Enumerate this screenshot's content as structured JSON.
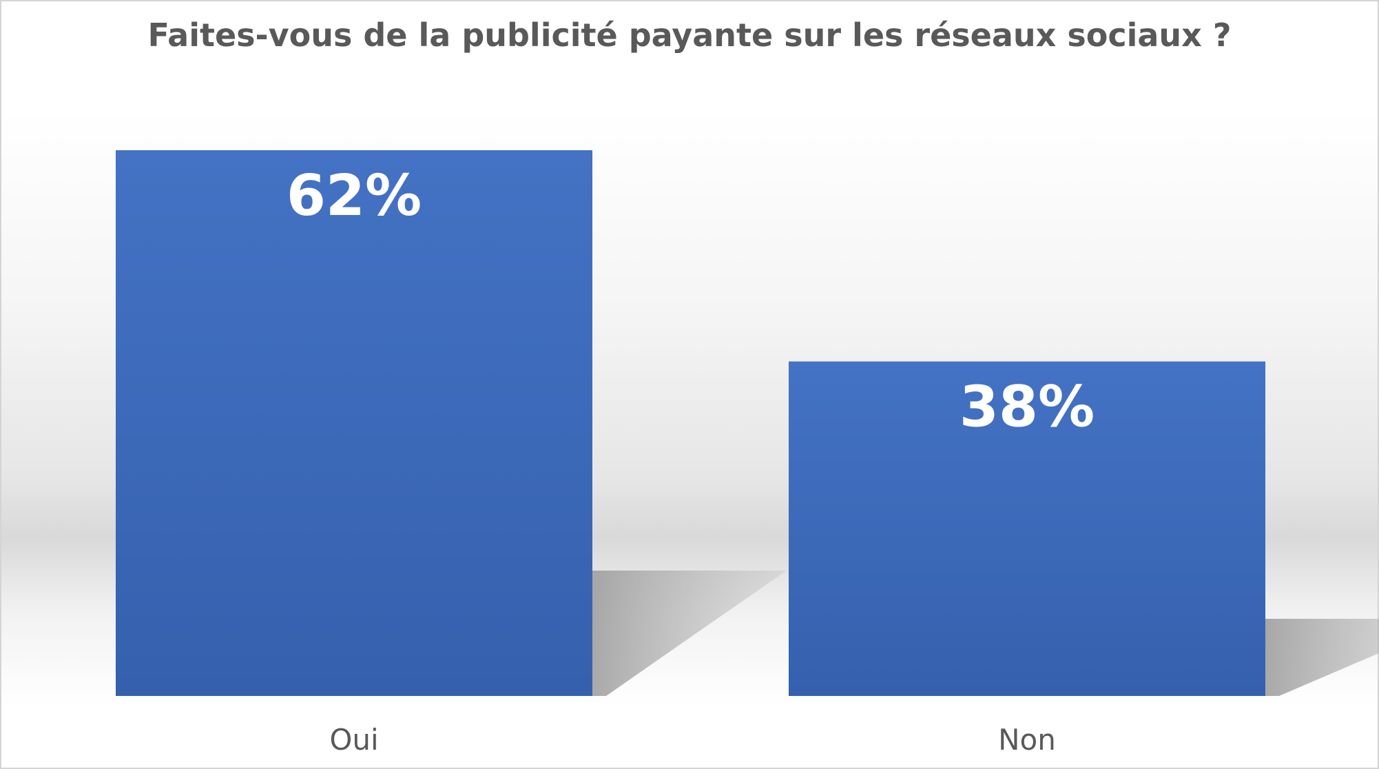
{
  "chart_data": {
    "type": "bar",
    "title": "Faites-vous de la publicité payante sur les réseaux sociaux ?",
    "categories": [
      "Oui",
      "Non"
    ],
    "values": [
      62,
      38
    ],
    "data_labels": [
      "62%",
      "38%"
    ],
    "unit": "%",
    "ylim": [
      0,
      70
    ],
    "grid": false,
    "legend": "none",
    "bar_color": "#4472C4",
    "bar_color_dark": "#3560AE",
    "title_color": "#595959",
    "label_color": "#595959",
    "data_label_color": "#FFFFFF"
  }
}
